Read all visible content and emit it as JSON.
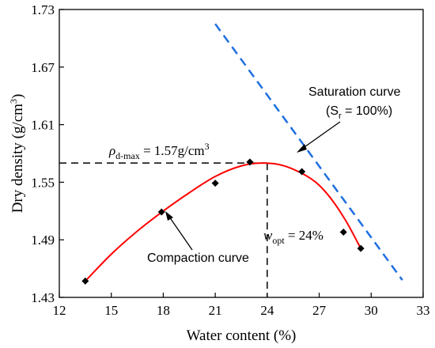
{
  "chart_data": {
    "type": "scatter",
    "xlabel": "Water content (%)",
    "ylabel": "Dry density (g/cm",
    "ylabel_sup": "3",
    "ylabel_close": ")",
    "xlim": [
      12,
      33
    ],
    "ylim": [
      1.43,
      1.73
    ],
    "xticks": [
      12,
      15,
      18,
      21,
      24,
      27,
      30,
      33
    ],
    "yticks": [
      1.43,
      1.49,
      1.55,
      1.61,
      1.67,
      1.73
    ],
    "xtick_labels": [
      "12",
      "15",
      "18",
      "21",
      "24",
      "27",
      "30",
      "33"
    ],
    "ytick_labels": [
      "1.43",
      "1.49",
      "1.55",
      "1.61",
      "1.67",
      "1.73"
    ],
    "series": [
      {
        "kind": "points",
        "color": "#000000",
        "x": [
          13.5,
          17.9,
          21.0,
          23.0,
          26.0,
          28.4,
          29.4
        ],
        "y": [
          1.447,
          1.519,
          1.549,
          1.571,
          1.561,
          1.498,
          1.481
        ]
      },
      {
        "kind": "fit-line",
        "color": "#ff0000",
        "x": [
          13.5,
          15.0,
          16.5,
          18.0,
          19.5,
          21.0,
          22.5,
          23.7,
          25.0,
          26.5,
          27.5,
          28.5,
          29.4
        ],
        "y": [
          1.447,
          1.475,
          1.499,
          1.52,
          1.539,
          1.556,
          1.567,
          1.57,
          1.567,
          1.554,
          1.537,
          1.511,
          1.481
        ]
      },
      {
        "kind": "saturation-line",
        "color": "#1f6fe0",
        "x": [
          21.0,
          31.8
        ],
        "y": [
          1.715,
          1.448
        ]
      }
    ],
    "reference_lines": {
      "color": "#000000",
      "max_density": 1.57,
      "optimum_water": 24
    },
    "annotations": {
      "rho_symbol": "ρ",
      "rho_sub": "d-max",
      "rho_value": " = 1.57g/cm",
      "rho_sup": "3",
      "w_symbol": "w",
      "w_sub": "opt",
      "w_value": " = 24%",
      "saturation_line1": "Saturation curve",
      "saturation_line2_open": "(S",
      "saturation_line2_sub": "r",
      "saturation_line2_close": " = 100%)",
      "compaction_label": "Compaction curve"
    }
  }
}
